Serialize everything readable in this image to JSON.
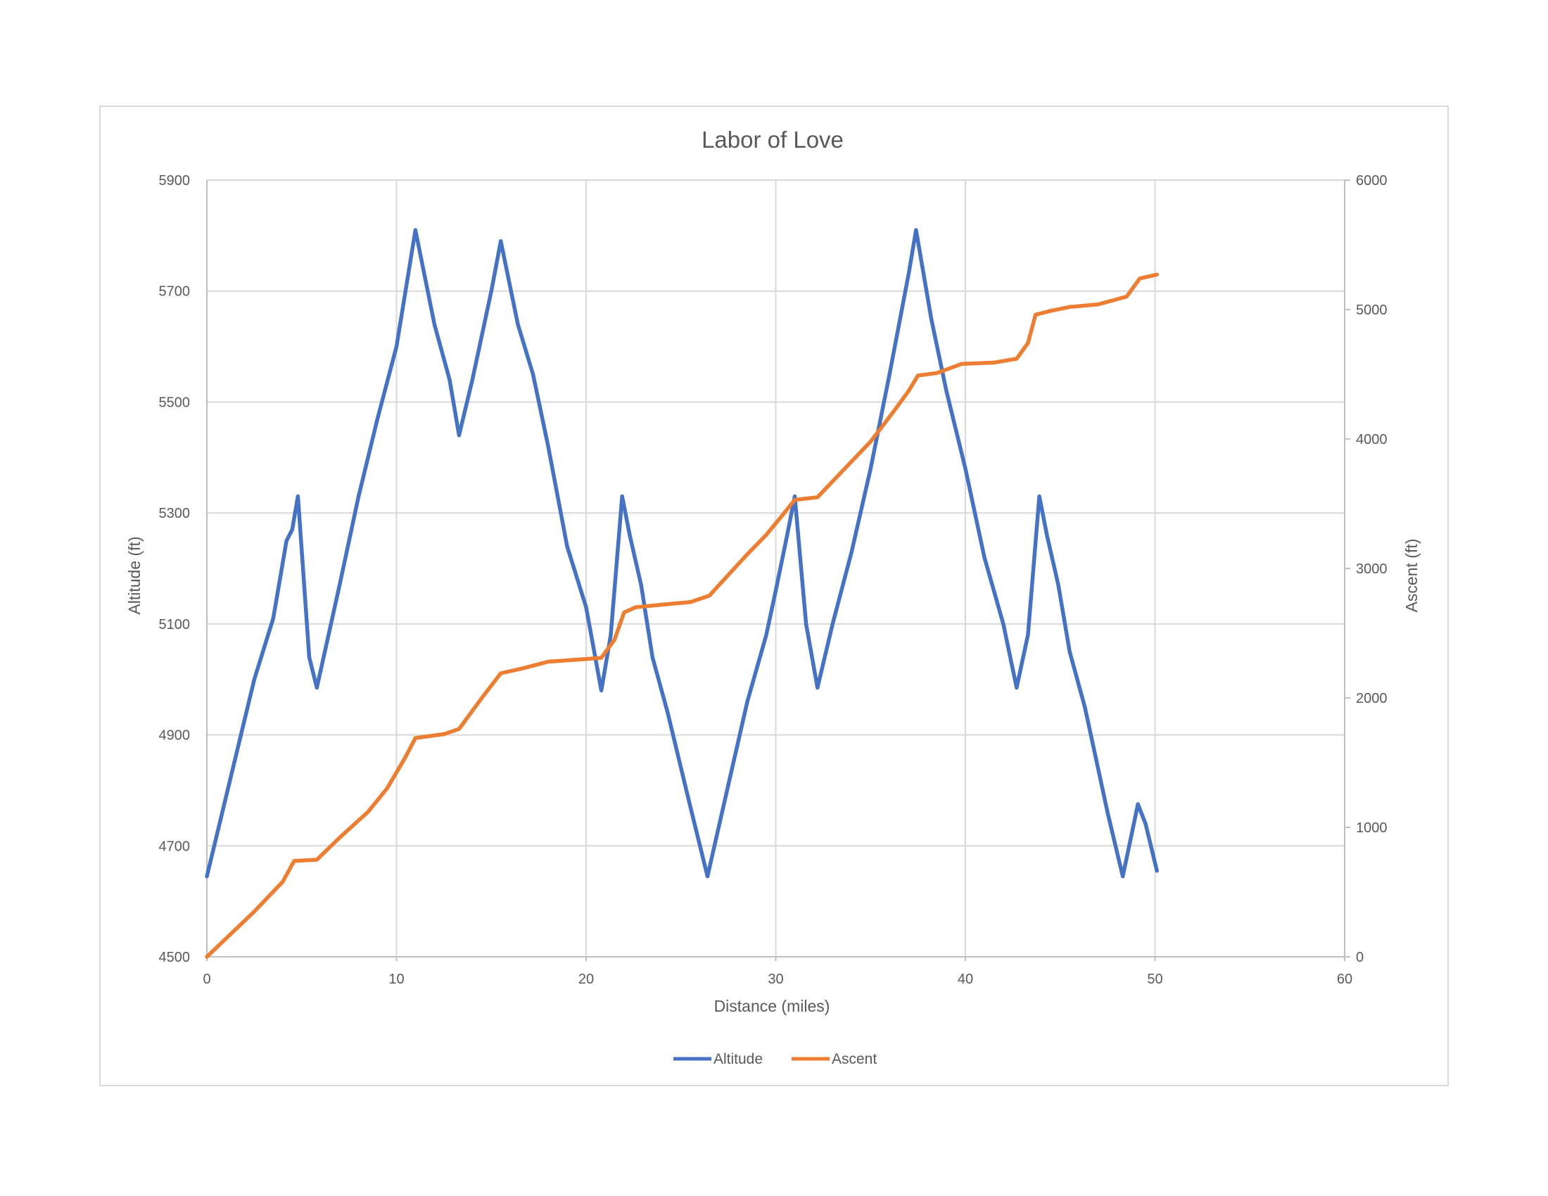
{
  "chart_data": {
    "type": "line",
    "title": "Labor of Love",
    "xlabel": "Distance (miles)",
    "ylabel": "Altitude (ft)",
    "y2label": "Ascent (ft)",
    "xlim": [
      0,
      60
    ],
    "ylim": [
      4500,
      5900
    ],
    "y2lim": [
      0,
      6000
    ],
    "xticks": [
      "0",
      "10",
      "20",
      "30",
      "40",
      "50",
      "60"
    ],
    "yticks": [
      "4500",
      "4700",
      "4900",
      "5100",
      "5300",
      "5500",
      "5700",
      "5900"
    ],
    "y2ticks": [
      "0",
      "1000",
      "2000",
      "3000",
      "4000",
      "5000",
      "6000"
    ],
    "grid": true,
    "legend_position": "bottom",
    "series": [
      {
        "name": "Altitude",
        "axis": "left",
        "color": "#4472c4",
        "points": [
          [
            0,
            4645
          ],
          [
            2.5,
            5000
          ],
          [
            3.5,
            5110
          ],
          [
            4.2,
            5250
          ],
          [
            4.5,
            5270
          ],
          [
            4.8,
            5330
          ],
          [
            5.4,
            5040
          ],
          [
            5.8,
            4985
          ],
          [
            7,
            5170
          ],
          [
            8,
            5330
          ],
          [
            9,
            5470
          ],
          [
            10,
            5600
          ],
          [
            11,
            5810
          ],
          [
            12,
            5640
          ],
          [
            12.8,
            5540
          ],
          [
            13.3,
            5440
          ],
          [
            14,
            5540
          ],
          [
            15,
            5700
          ],
          [
            15.5,
            5790
          ],
          [
            16.4,
            5640
          ],
          [
            17.2,
            5550
          ],
          [
            18,
            5420
          ],
          [
            19,
            5240
          ],
          [
            20,
            5130
          ],
          [
            20.8,
            4980
          ],
          [
            21.3,
            5080
          ],
          [
            21.9,
            5330
          ],
          [
            22.3,
            5260
          ],
          [
            22.9,
            5170
          ],
          [
            23.5,
            5040
          ],
          [
            24.3,
            4940
          ],
          [
            25.5,
            4770
          ],
          [
            26.4,
            4645
          ],
          [
            27.5,
            4810
          ],
          [
            28.5,
            4960
          ],
          [
            29.5,
            5080
          ],
          [
            30,
            5160
          ],
          [
            30.6,
            5260
          ],
          [
            31,
            5330
          ],
          [
            31.6,
            5100
          ],
          [
            32.2,
            4985
          ],
          [
            33,
            5100
          ],
          [
            34,
            5230
          ],
          [
            35,
            5380
          ],
          [
            36,
            5550
          ],
          [
            37,
            5730
          ],
          [
            37.4,
            5810
          ],
          [
            38.2,
            5650
          ],
          [
            39,
            5520
          ],
          [
            40,
            5380
          ],
          [
            41,
            5220
          ],
          [
            42,
            5100
          ],
          [
            42.7,
            4985
          ],
          [
            43.3,
            5080
          ],
          [
            43.9,
            5330
          ],
          [
            44.3,
            5260
          ],
          [
            44.9,
            5170
          ],
          [
            45.5,
            5050
          ],
          [
            46.3,
            4950
          ],
          [
            47.5,
            4760
          ],
          [
            48.3,
            4645
          ],
          [
            49.1,
            4775
          ],
          [
            49.5,
            4740
          ],
          [
            50.1,
            4655
          ]
        ]
      },
      {
        "name": "Ascent",
        "axis": "right",
        "color": "#ed7d31",
        "points": [
          [
            0,
            0
          ],
          [
            2.5,
            350
          ],
          [
            4,
            580
          ],
          [
            4.6,
            740
          ],
          [
            5.8,
            750
          ],
          [
            7,
            920
          ],
          [
            8.5,
            1120
          ],
          [
            9.5,
            1300
          ],
          [
            10.5,
            1550
          ],
          [
            11,
            1690
          ],
          [
            12.5,
            1720
          ],
          [
            13.3,
            1760
          ],
          [
            14.5,
            2000
          ],
          [
            15.5,
            2190
          ],
          [
            16.7,
            2230
          ],
          [
            18,
            2280
          ],
          [
            20,
            2300
          ],
          [
            20.8,
            2310
          ],
          [
            21.5,
            2450
          ],
          [
            22,
            2660
          ],
          [
            22.6,
            2700
          ],
          [
            24,
            2720
          ],
          [
            25.5,
            2740
          ],
          [
            26.5,
            2790
          ],
          [
            27.5,
            2950
          ],
          [
            28.5,
            3110
          ],
          [
            29.5,
            3260
          ],
          [
            30.4,
            3420
          ],
          [
            31,
            3530
          ],
          [
            32.2,
            3550
          ],
          [
            33.5,
            3750
          ],
          [
            35,
            3980
          ],
          [
            36.2,
            4210
          ],
          [
            37,
            4370
          ],
          [
            37.5,
            4490
          ],
          [
            38.5,
            4510
          ],
          [
            39.8,
            4580
          ],
          [
            41.5,
            4590
          ],
          [
            42.7,
            4620
          ],
          [
            43.3,
            4740
          ],
          [
            43.7,
            4960
          ],
          [
            44.5,
            4990
          ],
          [
            45.5,
            5020
          ],
          [
            47,
            5040
          ],
          [
            48.5,
            5100
          ],
          [
            49.2,
            5240
          ],
          [
            50.1,
            5270
          ]
        ]
      }
    ]
  }
}
